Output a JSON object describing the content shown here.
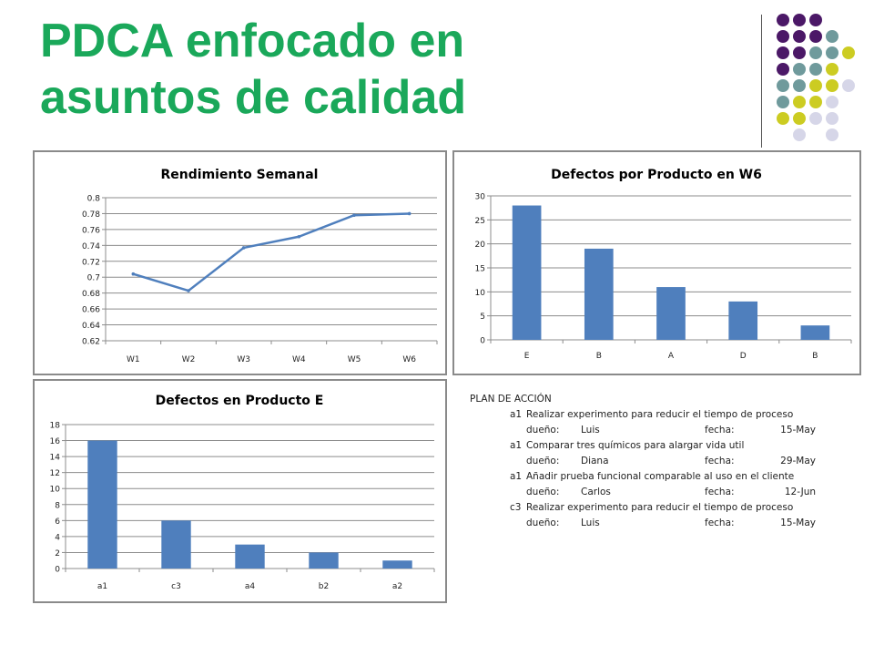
{
  "slide": {
    "title_line1": "PDCA enfocado en",
    "title_line2": "asuntos de calidad",
    "title_color": "#1aa85a"
  },
  "decoration": {
    "dot_grid": [
      [
        "#4b1867",
        "#4b1867",
        "#4b1867",
        "",
        ""
      ],
      [
        "#4b1867",
        "#4b1867",
        "#4b1867",
        "#6f9a9c",
        ""
      ],
      [
        "#4b1867",
        "#4b1867",
        "#6f9a9c",
        "#6f9a9c",
        "#cccc22"
      ],
      [
        "#4b1867",
        "#6f9a9c",
        "#6f9a9c",
        "#cccc22",
        ""
      ],
      [
        "#6f9a9c",
        "#6f9a9c",
        "#cccc22",
        "#cccc22",
        "#d6d6e8"
      ],
      [
        "#6f9a9c",
        "#cccc22",
        "#cccc22",
        "#d6d6e8",
        ""
      ],
      [
        "#cccc22",
        "#cccc22",
        "#d6d6e8",
        "#d6d6e8",
        ""
      ],
      [
        "",
        "#d6d6e8",
        "",
        "#d6d6e8",
        ""
      ]
    ]
  },
  "chart_data": [
    {
      "type": "line",
      "title": "Rendimiento Semanal",
      "categories": [
        "W1",
        "W2",
        "W3",
        "W4",
        "W5",
        "W6"
      ],
      "values": [
        0.704,
        0.683,
        0.737,
        0.751,
        0.778,
        0.78
      ],
      "ylim": [
        0.62,
        0.8
      ],
      "yticks": [
        "0.62",
        "0.64",
        "0.66",
        "0.68",
        "0.7",
        "0.72",
        "0.74",
        "0.76",
        "0.78",
        "0.8"
      ],
      "grid": true,
      "color": "#4f7fbd"
    },
    {
      "type": "bar",
      "title": "Defectos por Producto en W6",
      "categories": [
        "E",
        "B",
        "A",
        "D",
        "B"
      ],
      "values": [
        28,
        19,
        11,
        8,
        3
      ],
      "ylim": [
        0,
        30
      ],
      "yticks": [
        "0",
        "5",
        "10",
        "15",
        "20",
        "25",
        "30"
      ],
      "grid": true,
      "color": "#4f7fbd"
    },
    {
      "type": "bar",
      "title": "Defectos en Producto E",
      "categories": [
        "a1",
        "c3",
        "a4",
        "b2",
        "a2"
      ],
      "values": [
        16,
        6,
        3,
        2,
        1
      ],
      "ylim": [
        0,
        18
      ],
      "yticks": [
        "0",
        "2",
        "4",
        "6",
        "8",
        "10",
        "12",
        "14",
        "16",
        "18"
      ],
      "grid": true,
      "color": "#4f7fbd"
    }
  ],
  "action_plan": {
    "header": "PLAN DE ACCIÓN",
    "owner_label": "dueño:",
    "date_label": "fecha:",
    "items": [
      {
        "code": "a1",
        "task": "Realizar experimento para reducir el tiempo de proceso",
        "owner": "Luis",
        "date": "15-May"
      },
      {
        "code": "a1",
        "task": "Comparar tres químicos para alargar vida util",
        "owner": "Diana",
        "date": "29-May"
      },
      {
        "code": "a1",
        "task": "Añadir prueba funcional comparable al uso en el cliente",
        "owner": "Carlos",
        "date": "12-Jun"
      },
      {
        "code": "c3",
        "task": "Realizar experimento para reducir el tiempo de proceso",
        "owner": "Luis",
        "date": "15-May"
      }
    ]
  }
}
